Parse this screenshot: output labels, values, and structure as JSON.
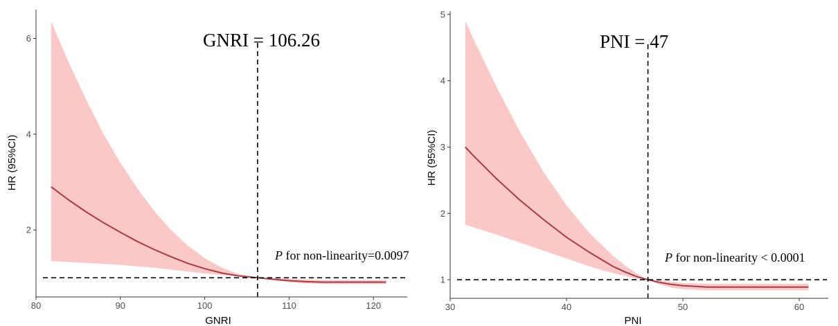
{
  "chart_data": [
    {
      "type": "line",
      "title": "",
      "xlabel": "GNRI",
      "ylabel": "HR (95%CI)",
      "xlim": [
        80,
        124
      ],
      "ylim": [
        0.6,
        6.6
      ],
      "x_ticks": [
        80,
        90,
        100,
        110,
        120
      ],
      "y_ticks": [
        2,
        4,
        6
      ],
      "x_tick_labels": [
        "80",
        "90",
        "100",
        "110",
        "120"
      ],
      "y_tick_labels": [
        "2",
        "4",
        "6"
      ],
      "cutoff_x": 106.26,
      "reference_y": 1,
      "cutoff_label": "GNRI = 106.26",
      "p_label_italic": "P",
      "p_label_rest": " for non-linearity=0.0097",
      "grid": false,
      "line_color": "#a83a42",
      "band_color": "#f9b3b3",
      "series": [
        {
          "x": [
            81.8,
            84,
            86,
            88,
            90,
            92,
            94,
            96,
            98,
            100,
            102,
            104,
            106.26,
            108,
            110,
            112,
            114,
            116,
            118,
            120,
            121.5
          ],
          "y": [
            2.9,
            2.61,
            2.37,
            2.15,
            1.95,
            1.76,
            1.59,
            1.44,
            1.3,
            1.19,
            1.1,
            1.04,
            1.0,
            0.97,
            0.94,
            0.92,
            0.91,
            0.91,
            0.91,
            0.91,
            0.91
          ],
          "lower": [
            1.35,
            1.33,
            1.31,
            1.29,
            1.27,
            1.24,
            1.21,
            1.17,
            1.13,
            1.09,
            1.06,
            1.03,
            1.0,
            0.95,
            0.91,
            0.88,
            0.87,
            0.87,
            0.87,
            0.87,
            0.87
          ],
          "upper": [
            6.35,
            5.45,
            4.7,
            4.0,
            3.4,
            2.87,
            2.4,
            2.0,
            1.67,
            1.41,
            1.21,
            1.08,
            1.0,
            0.99,
            0.98,
            0.96,
            0.95,
            0.95,
            0.95,
            0.95,
            0.95
          ]
        }
      ]
    },
    {
      "type": "line",
      "title": "",
      "xlabel": "PNI",
      "ylabel": "HR (95%CI)",
      "xlim": [
        30,
        62.5
      ],
      "ylim": [
        0.72,
        5.05
      ],
      "x_ticks": [
        30,
        40,
        50,
        60
      ],
      "y_ticks": [
        1,
        2,
        3,
        4,
        5
      ],
      "x_tick_labels": [
        "30",
        "40",
        "50",
        "60"
      ],
      "y_tick_labels": [
        "1",
        "2",
        "3",
        "4",
        "5"
      ],
      "cutoff_x": 47,
      "reference_y": 1,
      "cutoff_label": "PNI = 47",
      "p_label_italic": "P",
      "p_label_rest": " for non-linearity < 0.0001",
      "grid": false,
      "line_color": "#a83a42",
      "band_color": "#f9b3b3",
      "series": [
        {
          "x": [
            31.3,
            32,
            34,
            36,
            38,
            40,
            42,
            44,
            45,
            46,
            47,
            48,
            49,
            50,
            52,
            54,
            56,
            58,
            60,
            60.8
          ],
          "y": [
            3.0,
            2.87,
            2.52,
            2.2,
            1.91,
            1.64,
            1.41,
            1.2,
            1.12,
            1.05,
            1.0,
            0.96,
            0.93,
            0.91,
            0.89,
            0.89,
            0.89,
            0.89,
            0.89,
            0.89
          ],
          "lower": [
            1.83,
            1.79,
            1.68,
            1.56,
            1.44,
            1.32,
            1.2,
            1.1,
            1.06,
            1.02,
            1.0,
            0.93,
            0.88,
            0.86,
            0.84,
            0.84,
            0.84,
            0.84,
            0.84,
            0.84
          ],
          "upper": [
            4.9,
            4.63,
            3.9,
            3.23,
            2.63,
            2.12,
            1.7,
            1.36,
            1.22,
            1.1,
            1.0,
            0.99,
            0.97,
            0.95,
            0.94,
            0.94,
            0.94,
            0.94,
            0.94,
            0.94
          ]
        }
      ]
    }
  ]
}
